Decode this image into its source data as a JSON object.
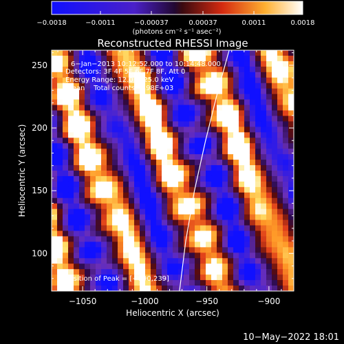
{
  "chart_data": {
    "type": "heatmap",
    "title": "Reconstructed RHESSI Image",
    "xlabel": "Heliocentric X (arcsec)",
    "ylabel": "Heliocentric Y (arcsec)",
    "xlim": [
      -1075,
      -880
    ],
    "ylim": [
      70,
      262
    ],
    "x_ticks": [
      -1050,
      -1000,
      -950,
      -900
    ],
    "x_tick_labels": [
      "−1050",
      "−1000",
      "−950",
      "−900"
    ],
    "y_ticks": [
      100,
      150,
      200,
      250
    ],
    "y_tick_labels": [
      "100",
      "150",
      "200",
      "250"
    ],
    "colorbar": {
      "range": [
        -0.0018,
        0.0018
      ],
      "ticks": [
        -0.0018,
        -0.0011,
        -0.00037,
        0.00037,
        0.0011,
        0.0018
      ],
      "tick_labels": [
        "−0.0018",
        "−0.0011",
        "−0.00037",
        "0.00037",
        "0.0011",
        "0.0018"
      ],
      "unit_label": "(photons cm⁻² s⁻¹ asec⁻²)"
    },
    "colors": {
      "low": "#1010ff",
      "mid_low": "#6a2fb8",
      "mid": "#2a0a4a",
      "mid_high": "#e0401a",
      "high": "#ffe06a",
      "max": "#ffffff"
    },
    "pattern": "diagonal striped reconstruction with alternating positive and negative bands oriented lower-right to upper-left",
    "limb_line": [
      [
        -972,
        70
      ],
      [
        -967,
        110
      ],
      [
        -960,
        150
      ],
      [
        -951,
        190
      ],
      [
        -941,
        230
      ],
      [
        -932,
        262
      ]
    ],
    "peak_position": [
      -990,
      239
    ]
  },
  "overlay": {
    "time_range": "6−Jan−2013 10:12:52.000 to 10:14:48.000",
    "detectors": "Detectors: 3F 4F 5F 6F 7F 8F, Att 0",
    "energy": "Energy Range: 12.0 − 25.0 keV",
    "method": "Clean    Total counts: 1.98E+03",
    "peak_label": "Position of Peak = [−990,239]"
  },
  "footer": {
    "date": "10−May−2022 18:01"
  }
}
